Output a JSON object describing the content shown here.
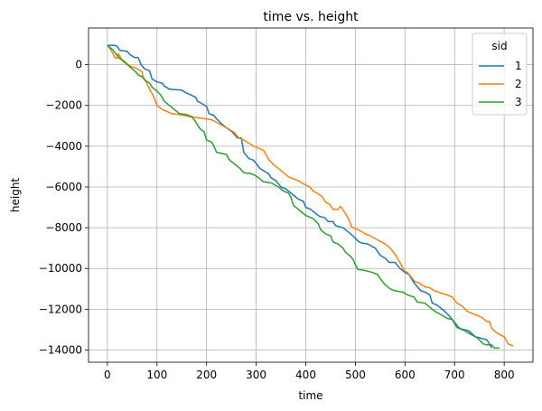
{
  "chart_data": {
    "type": "line",
    "title": "time vs. height",
    "xlabel": "time",
    "ylabel": "height",
    "xlim": [
      -38,
      858
    ],
    "ylim": [
      -14600,
      1800
    ],
    "xticks": [
      0,
      100,
      200,
      300,
      400,
      500,
      600,
      700,
      800
    ],
    "xtick_labels": [
      "0",
      "100",
      "200",
      "300",
      "400",
      "500",
      "600",
      "700",
      "800"
    ],
    "yticks": [
      0,
      -2000,
      -4000,
      -6000,
      -8000,
      -10000,
      -12000,
      -14000
    ],
    "ytick_labels": [
      "0",
      "−2000",
      "−4000",
      "−6000",
      "−8000",
      "−10000",
      "−12000",
      "−14000"
    ],
    "grid": true,
    "legend": {
      "title": "sid",
      "position": "upper-right"
    },
    "series": [
      {
        "name": "1",
        "color": "#1f77b4",
        "points": [
          [
            0,
            950
          ],
          [
            15,
            950
          ],
          [
            20,
            900
          ],
          [
            25,
            700
          ],
          [
            40,
            650
          ],
          [
            45,
            500
          ],
          [
            55,
            350
          ],
          [
            62,
            350
          ],
          [
            68,
            0
          ],
          [
            75,
            -200
          ],
          [
            85,
            -300
          ],
          [
            90,
            -700
          ],
          [
            100,
            -850
          ],
          [
            110,
            -900
          ],
          [
            115,
            -1050
          ],
          [
            125,
            -1200
          ],
          [
            150,
            -1250
          ],
          [
            160,
            -1400
          ],
          [
            170,
            -1500
          ],
          [
            178,
            -1600
          ],
          [
            182,
            -1800
          ],
          [
            190,
            -1900
          ],
          [
            200,
            -2050
          ],
          [
            205,
            -2400
          ],
          [
            215,
            -2500
          ],
          [
            220,
            -2650
          ],
          [
            230,
            -2900
          ],
          [
            240,
            -3100
          ],
          [
            252,
            -3300
          ],
          [
            262,
            -3600
          ],
          [
            270,
            -3600
          ],
          [
            275,
            -4300
          ],
          [
            285,
            -4600
          ],
          [
            295,
            -4700
          ],
          [
            300,
            -4850
          ],
          [
            308,
            -5100
          ],
          [
            318,
            -5250
          ],
          [
            325,
            -5350
          ],
          [
            330,
            -5550
          ],
          [
            340,
            -5700
          ],
          [
            350,
            -6000
          ],
          [
            360,
            -6100
          ],
          [
            375,
            -6400
          ],
          [
            385,
            -6600
          ],
          [
            395,
            -6700
          ],
          [
            400,
            -7000
          ],
          [
            410,
            -7100
          ],
          [
            420,
            -7300
          ],
          [
            428,
            -7450
          ],
          [
            438,
            -7500
          ],
          [
            445,
            -7700
          ],
          [
            455,
            -7700
          ],
          [
            460,
            -7900
          ],
          [
            475,
            -8000
          ],
          [
            485,
            -8200
          ],
          [
            495,
            -8400
          ],
          [
            505,
            -8650
          ],
          [
            512,
            -8750
          ],
          [
            525,
            -8800
          ],
          [
            540,
            -9000
          ],
          [
            550,
            -9350
          ],
          [
            560,
            -9500
          ],
          [
            568,
            -9700
          ],
          [
            580,
            -9700
          ],
          [
            590,
            -10000
          ],
          [
            600,
            -10200
          ],
          [
            608,
            -10300
          ],
          [
            618,
            -10700
          ],
          [
            625,
            -10900
          ],
          [
            632,
            -11100
          ],
          [
            640,
            -11150
          ],
          [
            650,
            -11300
          ],
          [
            655,
            -11700
          ],
          [
            665,
            -11800
          ],
          [
            672,
            -11950
          ],
          [
            680,
            -12100
          ],
          [
            688,
            -12300
          ],
          [
            695,
            -12500
          ],
          [
            702,
            -12700
          ],
          [
            708,
            -12900
          ],
          [
            718,
            -13000
          ],
          [
            728,
            -13050
          ],
          [
            735,
            -13200
          ],
          [
            742,
            -13350
          ],
          [
            750,
            -13400
          ],
          [
            758,
            -13450
          ],
          [
            765,
            -13500
          ],
          [
            770,
            -13700
          ],
          [
            775,
            -13900
          ]
        ]
      },
      {
        "name": "2",
        "color": "#ff7f0e",
        "points": [
          [
            0,
            950
          ],
          [
            5,
            800
          ],
          [
            10,
            600
          ],
          [
            15,
            350
          ],
          [
            20,
            300
          ],
          [
            22,
            550
          ],
          [
            30,
            200
          ],
          [
            40,
            0
          ],
          [
            50,
            -100
          ],
          [
            60,
            -200
          ],
          [
            70,
            -350
          ],
          [
            72,
            -600
          ],
          [
            78,
            -850
          ],
          [
            85,
            -1200
          ],
          [
            92,
            -1500
          ],
          [
            100,
            -2000
          ],
          [
            110,
            -2200
          ],
          [
            120,
            -2300
          ],
          [
            130,
            -2400
          ],
          [
            145,
            -2450
          ],
          [
            165,
            -2550
          ],
          [
            180,
            -2600
          ],
          [
            195,
            -2650
          ],
          [
            210,
            -2700
          ],
          [
            225,
            -2900
          ],
          [
            240,
            -3100
          ],
          [
            255,
            -3300
          ],
          [
            265,
            -3600
          ],
          [
            275,
            -3700
          ],
          [
            285,
            -3850
          ],
          [
            295,
            -4000
          ],
          [
            305,
            -4100
          ],
          [
            315,
            -4200
          ],
          [
            325,
            -4650
          ],
          [
            335,
            -4900
          ],
          [
            345,
            -5100
          ],
          [
            355,
            -5300
          ],
          [
            365,
            -5500
          ],
          [
            375,
            -5600
          ],
          [
            385,
            -5700
          ],
          [
            395,
            -5850
          ],
          [
            400,
            -5900
          ],
          [
            408,
            -6000
          ],
          [
            415,
            -6200
          ],
          [
            425,
            -6350
          ],
          [
            432,
            -6450
          ],
          [
            440,
            -6750
          ],
          [
            448,
            -6850
          ],
          [
            455,
            -7100
          ],
          [
            465,
            -7100
          ],
          [
            470,
            -6950
          ],
          [
            480,
            -7300
          ],
          [
            488,
            -7650
          ],
          [
            492,
            -7950
          ],
          [
            500,
            -8050
          ],
          [
            510,
            -8150
          ],
          [
            520,
            -8300
          ],
          [
            530,
            -8400
          ],
          [
            545,
            -8600
          ],
          [
            560,
            -8800
          ],
          [
            570,
            -9000
          ],
          [
            580,
            -9300
          ],
          [
            592,
            -9800
          ],
          [
            598,
            -10100
          ],
          [
            605,
            -10200
          ],
          [
            612,
            -10400
          ],
          [
            620,
            -10650
          ],
          [
            628,
            -10700
          ],
          [
            640,
            -10900
          ],
          [
            650,
            -10950
          ],
          [
            660,
            -11100
          ],
          [
            672,
            -11200
          ],
          [
            685,
            -11300
          ],
          [
            695,
            -11400
          ],
          [
            705,
            -11700
          ],
          [
            712,
            -11800
          ],
          [
            718,
            -11900
          ],
          [
            725,
            -12100
          ],
          [
            735,
            -12200
          ],
          [
            745,
            -12300
          ],
          [
            755,
            -12400
          ],
          [
            765,
            -12600
          ],
          [
            770,
            -12600
          ],
          [
            775,
            -12950
          ],
          [
            785,
            -13150
          ],
          [
            795,
            -13300
          ],
          [
            800,
            -13350
          ],
          [
            808,
            -13700
          ],
          [
            818,
            -13800
          ]
        ]
      },
      {
        "name": "3",
        "color": "#2ca02c",
        "points": [
          [
            0,
            950
          ],
          [
            10,
            750
          ],
          [
            15,
            600
          ],
          [
            25,
            300
          ],
          [
            35,
            150
          ],
          [
            45,
            -100
          ],
          [
            55,
            -300
          ],
          [
            62,
            -500
          ],
          [
            70,
            -600
          ],
          [
            78,
            -800
          ],
          [
            85,
            -900
          ],
          [
            90,
            -1100
          ],
          [
            100,
            -1300
          ],
          [
            108,
            -1500
          ],
          [
            115,
            -1800
          ],
          [
            125,
            -2000
          ],
          [
            135,
            -2200
          ],
          [
            145,
            -2400
          ],
          [
            160,
            -2450
          ],
          [
            170,
            -2550
          ],
          [
            178,
            -2800
          ],
          [
            185,
            -3100
          ],
          [
            195,
            -3300
          ],
          [
            200,
            -3700
          ],
          [
            210,
            -3800
          ],
          [
            215,
            -4000
          ],
          [
            220,
            -4300
          ],
          [
            240,
            -4400
          ],
          [
            245,
            -4650
          ],
          [
            255,
            -4850
          ],
          [
            268,
            -5100
          ],
          [
            275,
            -5300
          ],
          [
            290,
            -5350
          ],
          [
            295,
            -5400
          ],
          [
            305,
            -5550
          ],
          [
            315,
            -5750
          ],
          [
            330,
            -5800
          ],
          [
            345,
            -6000
          ],
          [
            355,
            -6200
          ],
          [
            365,
            -6300
          ],
          [
            370,
            -6500
          ],
          [
            375,
            -6900
          ],
          [
            390,
            -7200
          ],
          [
            400,
            -7400
          ],
          [
            415,
            -7550
          ],
          [
            425,
            -7800
          ],
          [
            430,
            -8100
          ],
          [
            440,
            -8300
          ],
          [
            450,
            -8400
          ],
          [
            455,
            -8700
          ],
          [
            465,
            -8800
          ],
          [
            475,
            -9000
          ],
          [
            480,
            -9200
          ],
          [
            490,
            -9400
          ],
          [
            495,
            -9550
          ],
          [
            500,
            -9800
          ],
          [
            505,
            -10050
          ],
          [
            520,
            -10100
          ],
          [
            535,
            -10200
          ],
          [
            545,
            -10300
          ],
          [
            550,
            -10500
          ],
          [
            560,
            -10800
          ],
          [
            570,
            -11000
          ],
          [
            580,
            -11100
          ],
          [
            595,
            -11150
          ],
          [
            605,
            -11300
          ],
          [
            618,
            -11400
          ],
          [
            625,
            -11650
          ],
          [
            640,
            -11700
          ],
          [
            650,
            -11900
          ],
          [
            660,
            -12100
          ],
          [
            668,
            -12200
          ],
          [
            675,
            -12300
          ],
          [
            685,
            -12450
          ],
          [
            695,
            -12500
          ],
          [
            705,
            -12900
          ],
          [
            720,
            -13050
          ],
          [
            730,
            -13200
          ],
          [
            745,
            -13400
          ],
          [
            758,
            -13700
          ],
          [
            765,
            -13750
          ],
          [
            775,
            -13750
          ],
          [
            780,
            -13900
          ],
          [
            790,
            -13900
          ]
        ]
      }
    ]
  }
}
